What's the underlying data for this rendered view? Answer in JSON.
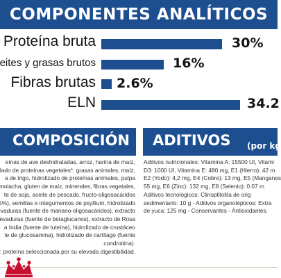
{
  "header": {
    "title": "COMPONENTES ANALÍTICOS"
  },
  "analytic_rows": [
    {
      "label": "Proteína bruta",
      "value_text": "30%",
      "value": 30
    },
    {
      "label": "eites y grasas brutos",
      "value_text": "16%",
      "value": 16
    },
    {
      "label": "Fibras brutas",
      "value_text": "2.6%",
      "value": 2.6
    },
    {
      "label": "ELN",
      "value_text": "34.2",
      "value": 34.2
    }
  ],
  "composition": {
    "title": "COMPOSICIÓN",
    "lines": [
      "eínas de ave deshidratadas, arroz, harina de maíz,",
      "olado de proteínas vegetales*, grasas animales, maíz,",
      "a de trigo, hidrolizado de proteínas animales, pulpa",
      "emolacha, gluten de maíz, minerales, fibras vegetales,",
      "te de soja, aceite de pescado, fructo-oligosacáridos",
      "5%), semillas e integumentos de psyllium, hidrolizado",
      "evaduras (fuente de manano-oligosacáridos), extracto",
      "evaduras (fuente de betaglucanos), extracto de Rosa",
      "a India (fuente de luteína), hidrolizado de crustáceo",
      "te de glucosamina), hidrolizado de cartílago (fuente",
      "condroitina).",
      "*: proteína seleccionada por su elevada digestibilidad."
    ]
  },
  "additives": {
    "title": "ADITIVOS",
    "subtitle": "(por kg",
    "lines": [
      "Aditivos nutricionales: Vitamina A: 15500 UI, Vitami",
      "D3: 1000 UI, Vitamina E: 480 mg, E1 (Hierro): 42 m",
      "E2 (Yodo): 4,2 mg, E4 (Cobre): 13 mg, E5 (Manganes",
      "55 mg, E6 (Zinc): 132 mg, E8 (Selenio): 0.07 m",
      "Aditivos tecnológicos: Clinoptilolita de orig",
      "sedimentario: 10 g - Aditivos organolépticos: Extra",
      "de yuca: 125 mg - Conservantes - Antioxidantes."
    ]
  },
  "colors": {
    "brand_blue": "#1d4e8f",
    "text": "#141414",
    "crown_red": "#c8102e"
  }
}
